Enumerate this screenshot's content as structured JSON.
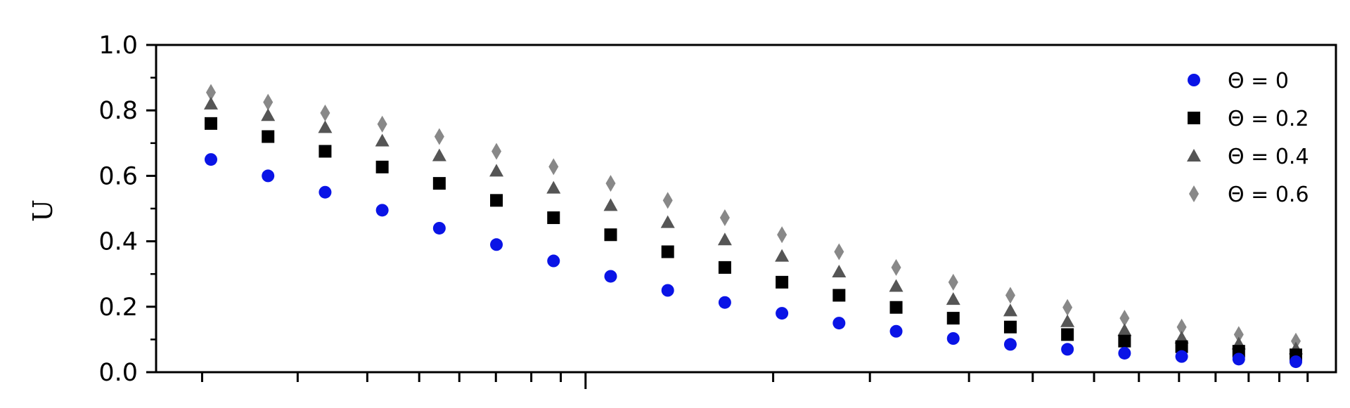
{
  "chart_data": {
    "type": "scatter",
    "title": "",
    "xlabel": "",
    "ylabel": "U",
    "ylim": [
      0,
      1.0
    ],
    "yticks": [
      "0.0",
      "0.2",
      "0.4",
      "0.6",
      "0.8",
      "1.0"
    ],
    "grid": false,
    "legend_position": "top-right",
    "x_tick_labels_visible": false,
    "series": [
      {
        "name": "Θ = 0",
        "marker": "circle",
        "color": "#0a14e6",
        "values": [
          0.65,
          0.6,
          0.55,
          0.495,
          0.44,
          0.39,
          0.34,
          0.293,
          0.25,
          0.213,
          0.18,
          0.15,
          0.125,
          0.103,
          0.085,
          0.07,
          0.058,
          0.048,
          0.04,
          0.032
        ]
      },
      {
        "name": "Θ = 0.2",
        "marker": "square",
        "color": "#000000",
        "values": [
          0.76,
          0.72,
          0.675,
          0.627,
          0.577,
          0.525,
          0.472,
          0.42,
          0.368,
          0.32,
          0.275,
          0.235,
          0.198,
          0.165,
          0.138,
          0.115,
          0.095,
          0.078,
          0.064,
          0.053
        ]
      },
      {
        "name": "Θ = 0.4",
        "marker": "triangle",
        "color": "#555555",
        "values": [
          0.82,
          0.785,
          0.748,
          0.707,
          0.662,
          0.615,
          0.563,
          0.51,
          0.458,
          0.405,
          0.355,
          0.307,
          0.263,
          0.223,
          0.188,
          0.155,
          0.128,
          0.105,
          0.087,
          0.072
        ]
      },
      {
        "name": "Θ = 0.6",
        "marker": "diamond",
        "color": "#888888",
        "values": [
          0.855,
          0.825,
          0.792,
          0.758,
          0.72,
          0.675,
          0.628,
          0.577,
          0.525,
          0.472,
          0.42,
          0.368,
          0.32,
          0.275,
          0.235,
          0.198,
          0.165,
          0.138,
          0.115,
          0.095
        ]
      }
    ]
  }
}
